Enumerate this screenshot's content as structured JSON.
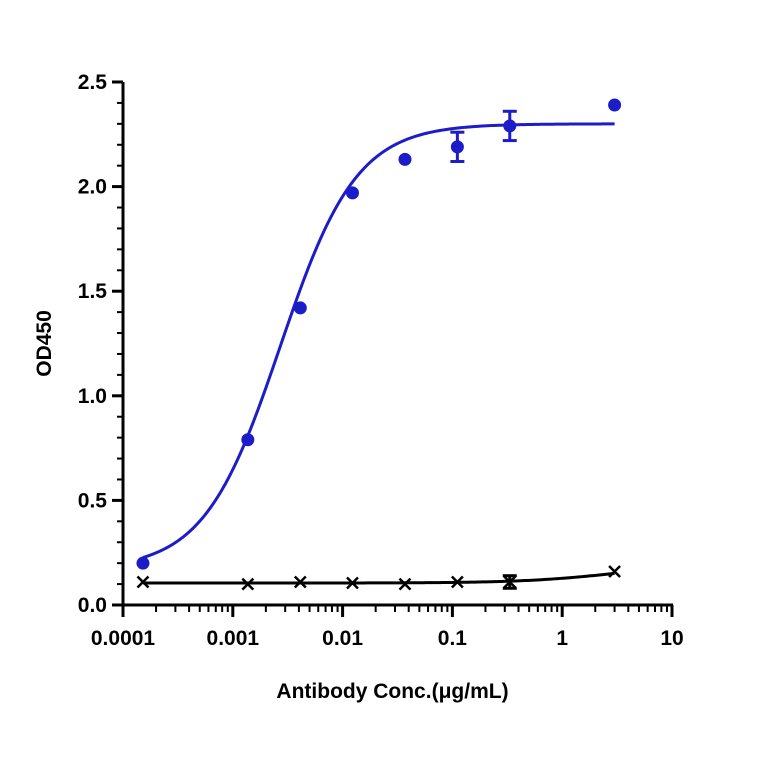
{
  "chart_data": {
    "type": "scatter",
    "xscale": "log",
    "xlabel": "Antibody Conc.(μg/mL)",
    "ylabel": "OD450",
    "xlim": [
      0.0001,
      10
    ],
    "ylim": [
      0,
      2.5
    ],
    "x_ticks": [
      0.0001,
      0.001,
      0.01,
      0.1,
      1,
      10
    ],
    "x_tick_labels": [
      "0.0001",
      "0.001",
      "0.01",
      "0.1",
      "1",
      "10"
    ],
    "y_ticks": [
      0,
      0.5,
      1,
      1.5,
      2,
      2.5
    ],
    "y_tick_labels": [
      "0.0",
      "0.5",
      "1.0",
      "1.5",
      "2.0",
      "2.5"
    ],
    "grid": false,
    "legend": false,
    "series": [
      {
        "marker": "circle",
        "color": "#1c1cc8",
        "fit": "sigmoidal",
        "fit_params": {
          "bottom": 0.17,
          "top": 2.3,
          "ec50": 0.0027,
          "hill": 1.25
        },
        "points": [
          {
            "x": 0.000152,
            "y": 0.2
          },
          {
            "x": 0.00137,
            "y": 0.79
          },
          {
            "x": 0.00412,
            "y": 1.42
          },
          {
            "x": 0.0123,
            "y": 1.97
          },
          {
            "x": 0.037,
            "y": 2.13
          },
          {
            "x": 0.111,
            "y": 2.19,
            "err": 0.07
          },
          {
            "x": 0.333,
            "y": 2.29,
            "err": 0.07
          },
          {
            "x": 3.0,
            "y": 2.39
          }
        ]
      },
      {
        "marker": "x",
        "color": "#000000",
        "fit": "sigmoidal",
        "fit_params": {
          "bottom": 0.105,
          "top": 0.2,
          "ec50": 3.2,
          "hill": 1.0
        },
        "points": [
          {
            "x": 0.000152,
            "y": 0.11
          },
          {
            "x": 0.00137,
            "y": 0.1
          },
          {
            "x": 0.00412,
            "y": 0.11
          },
          {
            "x": 0.0123,
            "y": 0.105
          },
          {
            "x": 0.037,
            "y": 0.1
          },
          {
            "x": 0.111,
            "y": 0.11
          },
          {
            "x": 0.333,
            "y": 0.11,
            "err": 0.03
          },
          {
            "x": 3.0,
            "y": 0.16
          }
        ]
      }
    ]
  }
}
